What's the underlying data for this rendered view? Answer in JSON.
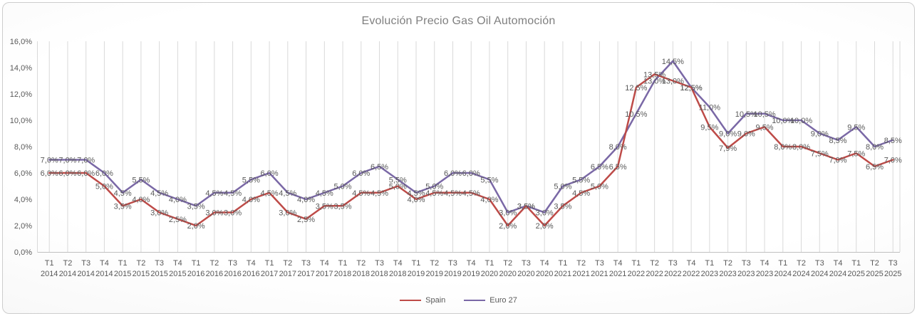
{
  "chart_data": {
    "type": "line",
    "title": "Evolución Precio Gas Oil Automoción",
    "categories": [
      "T1 2014",
      "T2 2014",
      "T3 2014",
      "T4 2014",
      "T1 2015",
      "T2 2015",
      "T3 2015",
      "T4 2015",
      "T1 2016",
      "T2 2016",
      "T3 2016",
      "T4 2016",
      "T1 2017",
      "T2 2017",
      "T3 2017",
      "T4 2017",
      "T1 2018",
      "T2 2018",
      "T3 2018",
      "T4 2018",
      "T1 2019",
      "T2 2019",
      "T3 2019",
      "T4 2019",
      "T1 2020",
      "T2 2020",
      "T3 2020",
      "T4 2020",
      "T1 2021",
      "T2 2021",
      "T3 2021",
      "T4 2021",
      "T1 2022",
      "T2 2022",
      "T3 2022",
      "T4 2022",
      "T1 2023",
      "T2 2023",
      "T3 2023",
      "T4 2023",
      "T1 2024",
      "T2 2024",
      "T3 2024",
      "T4 2024",
      "T1 2025",
      "T2 2025",
      "T3 2025"
    ],
    "series": [
      {
        "name": "Spain",
        "color": "#BE4B48",
        "values": [
          6.0,
          6.0,
          6.0,
          5.0,
          3.5,
          4.0,
          3.0,
          2.5,
          2.0,
          3.0,
          3.0,
          4.0,
          4.5,
          3.0,
          2.5,
          3.5,
          3.5,
          4.5,
          4.5,
          5.0,
          4.0,
          4.5,
          4.5,
          4.5,
          4.0,
          2.0,
          3.5,
          2.0,
          3.5,
          4.5,
          5.0,
          6.5,
          12.5,
          13.5,
          13.0,
          12.5,
          9.5,
          7.9,
          9.0,
          9.5,
          8.0,
          8.0,
          7.5,
          7.0,
          7.5,
          6.5,
          7.0
        ]
      },
      {
        "name": "Euro 27",
        "color": "#7A68A6",
        "values": [
          7.0,
          7.0,
          7.0,
          6.0,
          4.5,
          5.5,
          4.5,
          4.0,
          3.5,
          4.5,
          4.5,
          5.5,
          6.0,
          4.5,
          4.0,
          4.5,
          5.0,
          6.0,
          6.5,
          5.5,
          4.5,
          5.0,
          6.0,
          6.0,
          5.5,
          3.0,
          3.5,
          3.0,
          5.0,
          5.5,
          6.5,
          8.0,
          10.5,
          13.0,
          14.5,
          12.5,
          11.0,
          9.0,
          10.5,
          10.5,
          10.0,
          10.0,
          9.0,
          8.5,
          9.5,
          8.0,
          8.5
        ]
      }
    ],
    "y_axis": {
      "min": 0,
      "max": 16,
      "step": 2,
      "tick_labels": [
        "0,0%",
        "2,0%",
        "4,0%",
        "6,0%",
        "8,0%",
        "10,0%",
        "12,0%",
        "14,0%",
        "16,0%"
      ]
    },
    "label_format": "comma-decimal-percent-1dp",
    "legend_position": "bottom",
    "grid": "vertical-only",
    "style": {
      "grid_color": "#D9D9D9",
      "axis_color": "#C0C0C0",
      "text_color": "#595959",
      "title_color": "#7F7F7F"
    }
  }
}
